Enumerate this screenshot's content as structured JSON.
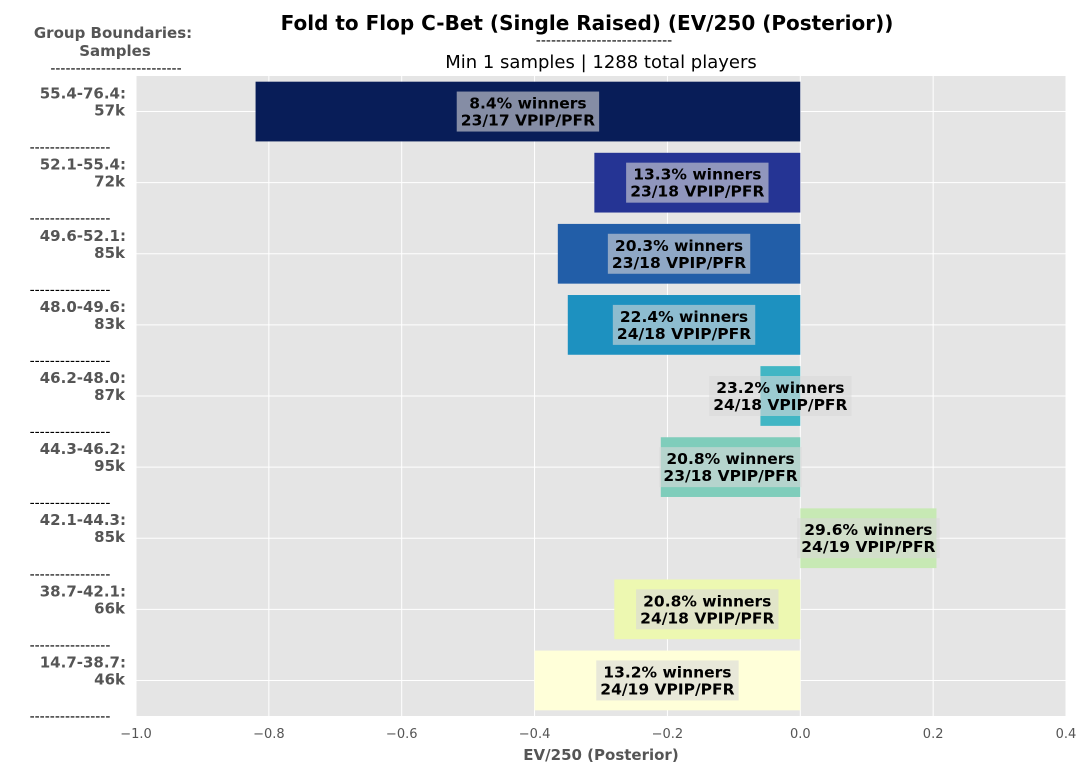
{
  "chart_data": {
    "type": "bar",
    "orientation": "horizontal",
    "title": "Fold to Flop C-Bet (Single Raised) (EV/250 (Posterior))",
    "title_underline": "---------------------------",
    "subtitle": "Min 1 samples | 1288 total players",
    "group_header_line1": "Group Boundaries:",
    "group_header_line2": "Samples",
    "group_header_underline": "--------------------------",
    "separator": "----------------",
    "xlabel": "EV/250 (Posterior)",
    "xlim": [
      -1.0,
      0.4
    ],
    "xticks": [
      "−1.0",
      "−0.8",
      "−0.6",
      "−0.4",
      "−0.2",
      "0.0",
      "0.2",
      "0.4"
    ],
    "xtick_values": [
      -1.0,
      -0.8,
      -0.6,
      -0.4,
      -0.2,
      0.0,
      0.2,
      0.4
    ],
    "grid": true,
    "categories": [
      {
        "range": "55.4-76.4:",
        "samples": "57k",
        "value": -0.82,
        "winners": "8.4% winners",
        "vpip": "23/17 VPIP/PFR",
        "color": "#081d58"
      },
      {
        "range": "52.1-55.4:",
        "samples": "72k",
        "value": -0.31,
        "winners": "13.3% winners",
        "vpip": "23/18 VPIP/PFR",
        "color": "#253494"
      },
      {
        "range": "49.6-52.1:",
        "samples": "85k",
        "value": -0.365,
        "winners": "20.3% winners",
        "vpip": "23/18 VPIP/PFR",
        "color": "#225ea8"
      },
      {
        "range": "48.0-49.6:",
        "samples": "83k",
        "value": -0.35,
        "winners": "22.4% winners",
        "vpip": "24/18 VPIP/PFR",
        "color": "#1d91c0"
      },
      {
        "range": "46.2-48.0:",
        "samples": "87k",
        "value": -0.06,
        "winners": "23.2% winners",
        "vpip": "24/18 VPIP/PFR",
        "color": "#41b6c4"
      },
      {
        "range": "44.3-46.2:",
        "samples": "95k",
        "value": -0.21,
        "winners": "20.8% winners",
        "vpip": "23/18 VPIP/PFR",
        "color": "#7fcdbb"
      },
      {
        "range": "42.1-44.3:",
        "samples": "85k",
        "value": 0.205,
        "winners": "29.6% winners",
        "vpip": "24/19 VPIP/PFR",
        "color": "#c7e9b4"
      },
      {
        "range": "38.7-42.1:",
        "samples": "66k",
        "value": -0.28,
        "winners": "20.8% winners",
        "vpip": "24/18 VPIP/PFR",
        "color": "#edf8b1"
      },
      {
        "range": "14.7-38.7:",
        "samples": "46k",
        "value": -0.4,
        "winners": "13.2% winners",
        "vpip": "24/19 VPIP/PFR",
        "color": "#ffffd9"
      }
    ],
    "colors": {
      "plot_background": "#e5e5e5",
      "grid": "#ffffff",
      "label_box": "#d9d9d9"
    }
  }
}
